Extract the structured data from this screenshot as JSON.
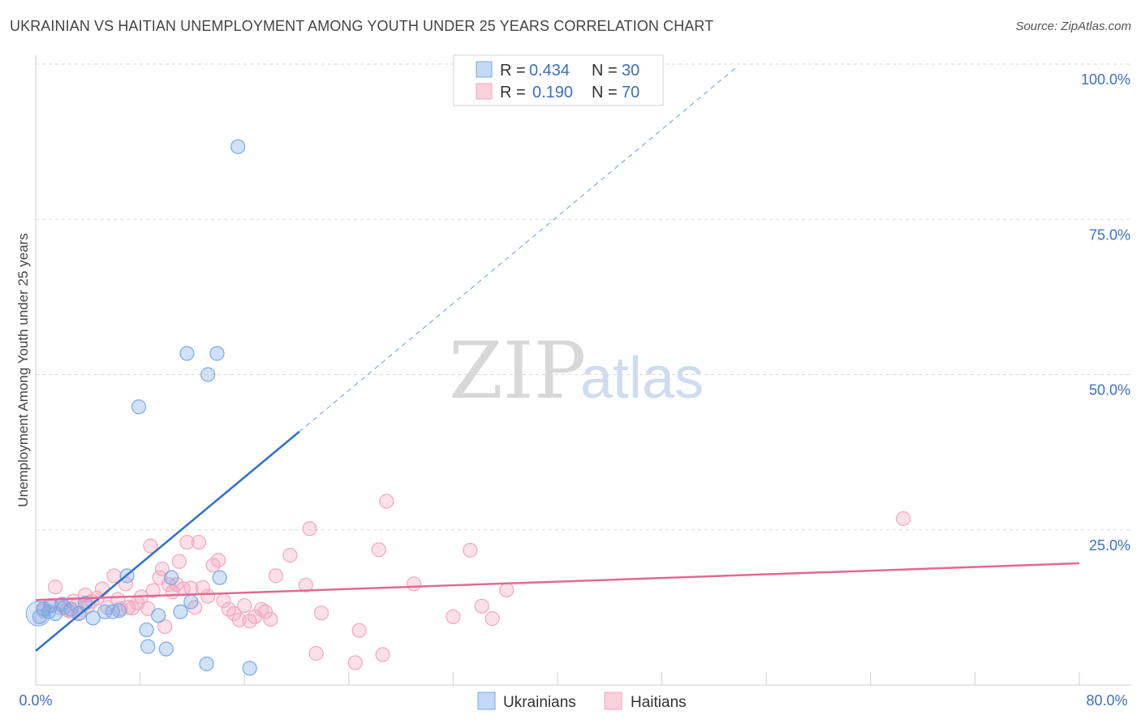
{
  "title": "UKRAINIAN VS HAITIAN UNEMPLOYMENT AMONG YOUTH UNDER 25 YEARS CORRELATION CHART",
  "source": "Source: ZipAtlas.com",
  "watermark": {
    "zip": "ZIP",
    "atlas": "atlas"
  },
  "colors": {
    "ukrainian": "#7aaae6",
    "ukrainian_line": "#2f6fcd",
    "haitian": "#f4a6bf",
    "haitian_line": "#e06a94",
    "grid": "#d9d9d9",
    "tick_label": "#3d6fc1"
  },
  "legend": {
    "rows": [
      {
        "r_label": "R = ",
        "r_value": "0.434",
        "n_label": "N = ",
        "n_value": "30"
      },
      {
        "r_label": "R = ",
        "r_value": "0.190",
        "n_label": "N = ",
        "n_value": "70"
      }
    ]
  },
  "chart_data": {
    "type": "scatter",
    "title": "UKRAINIAN VS HAITIAN UNEMPLOYMENT AMONG YOUTH UNDER 25 YEARS CORRELATION CHART",
    "xlabel": "",
    "ylabel": "Unemployment Among Youth under 25 years",
    "xlim": [
      0,
      80
    ],
    "ylim": [
      0,
      100
    ],
    "x_tick_labels": [
      "0.0%",
      "80.0%"
    ],
    "y_ticks": [
      25,
      50,
      75,
      100
    ],
    "y_tick_labels": [
      "25.0%",
      "50.0%",
      "75.0%",
      "100.0%"
    ],
    "grid": true,
    "legend_position": "top-center",
    "series": [
      {
        "name": "Ukrainians",
        "points": [
          [
            0.3,
            11.0
          ],
          [
            0.6,
            12.3
          ],
          [
            1.0,
            11.8
          ],
          [
            1.5,
            11.5
          ],
          [
            2.0,
            13.0
          ],
          [
            2.7,
            12.2
          ],
          [
            3.3,
            11.5
          ],
          [
            4.4,
            10.8
          ],
          [
            5.3,
            11.8
          ],
          [
            5.9,
            11.8
          ],
          [
            6.4,
            12.0
          ],
          [
            7.0,
            17.6
          ],
          [
            7.9,
            44.8
          ],
          [
            8.5,
            8.9
          ],
          [
            8.6,
            6.2
          ],
          [
            9.4,
            11.2
          ],
          [
            10.0,
            5.8
          ],
          [
            10.4,
            17.3
          ],
          [
            11.1,
            11.8
          ],
          [
            11.6,
            53.4
          ],
          [
            11.9,
            13.4
          ],
          [
            13.1,
            3.4
          ],
          [
            13.2,
            50.0
          ],
          [
            13.9,
            53.4
          ],
          [
            14.1,
            17.3
          ],
          [
            15.5,
            86.7
          ],
          [
            16.4,
            2.7
          ],
          [
            2.2,
            12.5
          ],
          [
            3.8,
            13.2
          ],
          [
            1.2,
            12.8
          ]
        ],
        "trend": {
          "x": [
            0,
            20.2
          ],
          "y": [
            5.5,
            40.8
          ],
          "dashed_to": [
            53.6,
            99.3
          ]
        }
      },
      {
        "name": "Haitians",
        "points": [
          [
            0.6,
            12.0
          ],
          [
            1.1,
            12.8
          ],
          [
            1.5,
            15.8
          ],
          [
            1.9,
            12.4
          ],
          [
            2.4,
            12.1
          ],
          [
            2.9,
            13.5
          ],
          [
            3.1,
            12.8
          ],
          [
            3.4,
            11.6
          ],
          [
            3.8,
            14.5
          ],
          [
            4.3,
            13.5
          ],
          [
            4.7,
            14.0
          ],
          [
            5.1,
            15.5
          ],
          [
            5.5,
            12.5
          ],
          [
            6.0,
            17.6
          ],
          [
            6.3,
            13.8
          ],
          [
            6.5,
            12.3
          ],
          [
            6.9,
            16.3
          ],
          [
            7.1,
            12.5
          ],
          [
            7.4,
            12.4
          ],
          [
            7.8,
            13.2
          ],
          [
            8.1,
            14.2
          ],
          [
            8.6,
            12.3
          ],
          [
            8.8,
            22.4
          ],
          [
            9.0,
            15.2
          ],
          [
            9.5,
            17.3
          ],
          [
            9.7,
            18.7
          ],
          [
            9.9,
            9.4
          ],
          [
            10.2,
            16.2
          ],
          [
            10.5,
            15.0
          ],
          [
            10.8,
            16.2
          ],
          [
            11.0,
            19.9
          ],
          [
            11.3,
            15.5
          ],
          [
            11.6,
            23.0
          ],
          [
            11.9,
            15.6
          ],
          [
            12.2,
            12.5
          ],
          [
            12.5,
            23.0
          ],
          [
            12.8,
            15.7
          ],
          [
            13.2,
            14.3
          ],
          [
            13.6,
            19.3
          ],
          [
            14.0,
            20.1
          ],
          [
            14.4,
            13.6
          ],
          [
            14.8,
            12.2
          ],
          [
            15.2,
            11.5
          ],
          [
            15.6,
            10.5
          ],
          [
            16.0,
            12.8
          ],
          [
            16.4,
            10.3
          ],
          [
            16.8,
            11.0
          ],
          [
            17.3,
            12.2
          ],
          [
            17.6,
            11.8
          ],
          [
            18.0,
            10.6
          ],
          [
            18.4,
            17.6
          ],
          [
            19.5,
            20.9
          ],
          [
            21.0,
            25.2
          ],
          [
            21.5,
            5.1
          ],
          [
            21.9,
            11.6
          ],
          [
            24.5,
            3.6
          ],
          [
            24.8,
            8.8
          ],
          [
            26.3,
            21.8
          ],
          [
            26.6,
            4.9
          ],
          [
            26.9,
            29.6
          ],
          [
            29.0,
            16.3
          ],
          [
            32.0,
            11.0
          ],
          [
            33.3,
            21.7
          ],
          [
            34.2,
            12.7
          ],
          [
            35.0,
            10.7
          ],
          [
            36.1,
            15.3
          ],
          [
            66.5,
            26.8
          ],
          [
            20.7,
            16.1
          ],
          [
            4.0,
            12.7
          ],
          [
            2.6,
            11.9
          ]
        ],
        "trend": {
          "x": [
            0,
            80
          ],
          "y": [
            13.7,
            19.6
          ]
        }
      }
    ]
  },
  "bottom_legend": {
    "items": [
      "Ukrainians",
      "Haitians"
    ]
  }
}
